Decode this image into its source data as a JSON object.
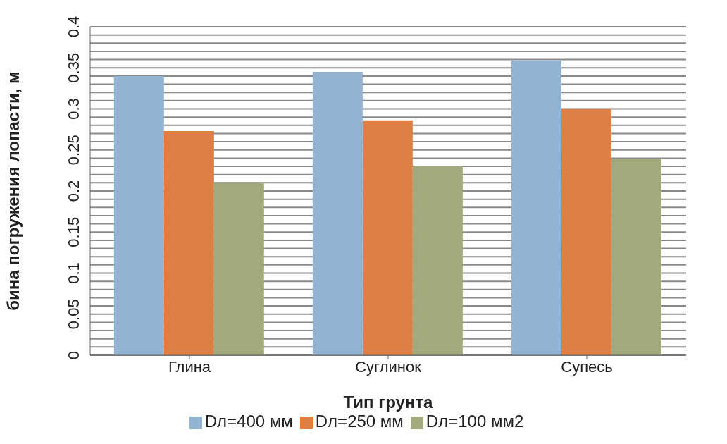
{
  "chart_data": {
    "type": "bar",
    "xlabel": "Тип грунта",
    "ylabel": "бина погружения лопасти, м",
    "categories": [
      "Глина",
      "Суглинок",
      "Супесь"
    ],
    "series": [
      {
        "name": "Dл=400 мм",
        "color": "#93b3d3",
        "values": [
          0.34,
          0.345,
          0.359
        ]
      },
      {
        "name": "Dл=250 мм",
        "color": "#de7f45",
        "values": [
          0.273,
          0.286,
          0.3
        ]
      },
      {
        "name": "Dл=100 мм2",
        "color": "#a2a97c",
        "values": [
          0.21,
          0.23,
          0.239
        ]
      }
    ],
    "ylim": [
      0,
      0.4
    ],
    "yticks": [
      0,
      {
        "value": 0.01,
        "label": null
      },
      {
        "value": 0.02,
        "label": null
      },
      {
        "value": 0.03,
        "label": null
      },
      {
        "value": 0.04,
        "label": null
      },
      0.05,
      {
        "value": 0.06,
        "label": null
      },
      {
        "value": 0.07,
        "label": null
      },
      {
        "value": 0.08,
        "label": null
      },
      {
        "value": 0.09,
        "label": null
      },
      0.1,
      {
        "value": 0.11,
        "label": null
      },
      {
        "value": 0.12,
        "label": null
      },
      {
        "value": 0.13,
        "label": null
      },
      {
        "value": 0.14,
        "label": null
      },
      0.15,
      {
        "value": 0.16,
        "label": null
      },
      {
        "value": 0.17,
        "label": null
      },
      {
        "value": 0.18,
        "label": null
      },
      {
        "value": 0.19,
        "label": null
      },
      0.2,
      {
        "value": 0.21,
        "label": null
      },
      {
        "value": 0.22,
        "label": null
      },
      {
        "value": 0.23,
        "label": null
      },
      {
        "value": 0.24,
        "label": null
      },
      0.25,
      {
        "value": 0.26,
        "label": null
      },
      {
        "value": 0.27,
        "label": null
      },
      {
        "value": 0.28,
        "label": null
      },
      {
        "value": 0.29,
        "label": null
      },
      0.3,
      {
        "value": 0.31,
        "label": null
      },
      {
        "value": 0.32,
        "label": null
      },
      {
        "value": 0.33,
        "label": null
      },
      {
        "value": 0.34,
        "label": null
      },
      0.35,
      {
        "value": 0.36,
        "label": null
      },
      {
        "value": 0.37,
        "label": null
      },
      {
        "value": 0.38,
        "label": null
      },
      {
        "value": 0.39,
        "label": null
      },
      0.4
    ],
    "grid": "y",
    "legend": "bottom"
  }
}
